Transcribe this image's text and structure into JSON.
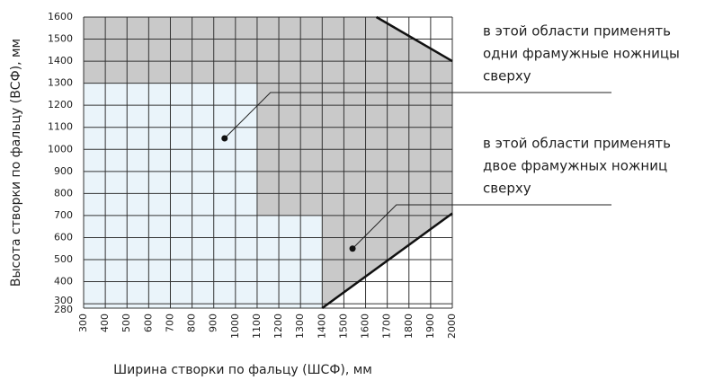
{
  "chart_data": {
    "type": "region",
    "x_label": "Ширина створки по фальцу (ШСФ), мм",
    "y_label": "Высота створки по фальцу (ВСФ), мм",
    "xlim": [
      300,
      2000
    ],
    "ylim": [
      280,
      1600
    ],
    "xticks": [
      300,
      400,
      500,
      600,
      700,
      800,
      900,
      1000,
      1100,
      1200,
      1300,
      1400,
      1500,
      1600,
      1700,
      1800,
      1900,
      2000
    ],
    "yticks": [
      280,
      300,
      400,
      500,
      600,
      700,
      800,
      900,
      1000,
      1100,
      1200,
      1300,
      1400,
      1500,
      1600
    ],
    "grid": true,
    "regions": [
      {
        "color": "#eaf4fa",
        "x": [
          300,
          300,
          1100,
          1100,
          1400,
          1400
        ],
        "y": [
          280,
          1300,
          1300,
          700,
          700,
          280
        ]
      },
      {
        "color": "#c9c9c9",
        "x": [
          300,
          300,
          1650,
          2000,
          2000,
          1400,
          1400,
          1100,
          1100
        ],
        "y": [
          1300,
          1600,
          1600,
          1400,
          710,
          280,
          700,
          700,
          1300
        ]
      }
    ],
    "boundaries": [
      {
        "x": [
          1650,
          2000
        ],
        "y": [
          1600,
          1400
        ]
      },
      {
        "x": [
          1400,
          2000
        ],
        "y": [
          280,
          710
        ]
      }
    ],
    "annotations": [
      {
        "lines": [
          "в этой области применять",
          "одни фрамужные ножницы",
          "сверху"
        ],
        "x": 950,
        "y": 1050
      },
      {
        "lines": [
          "в этой области применять",
          "двое фрамужных ножниц",
          "сверху"
        ],
        "x": 1540,
        "y": 550
      }
    ]
  }
}
